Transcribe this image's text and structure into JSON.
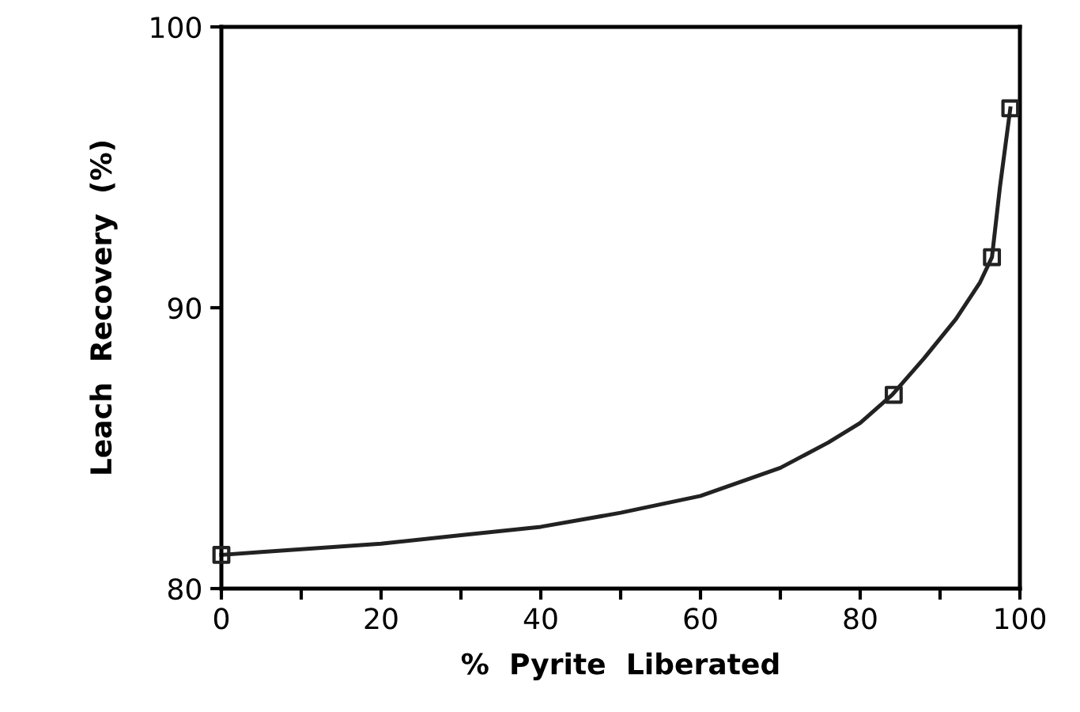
{
  "chart_data": {
    "type": "line",
    "xlabel": "%  Pyrite  Liberated",
    "ylabel": "Leach  Recovery  (%)",
    "xlim": [
      0,
      100
    ],
    "ylim": [
      80,
      100
    ],
    "xticks": [
      0,
      {
        "value": 10,
        "label": null
      },
      20,
      {
        "value": 30,
        "label": null
      },
      40,
      {
        "value": 50,
        "label": null
      },
      60,
      {
        "value": 70,
        "label": null
      },
      80,
      {
        "value": 90,
        "label": null
      },
      100
    ],
    "yticks": [
      80,
      90,
      100
    ],
    "grid": false,
    "legend": false,
    "series": [
      {
        "color": "#222222",
        "marker": "none",
        "line_style": "solid",
        "x": [
          0,
          5,
          10,
          20,
          30,
          40,
          50,
          60,
          70,
          76,
          80,
          84,
          88,
          92,
          95,
          96.5,
          97.5,
          98.8
        ],
        "values": [
          81.2,
          81.3,
          81.4,
          81.6,
          81.9,
          82.2,
          82.7,
          83.3,
          84.3,
          85.2,
          85.9,
          86.9,
          88.2,
          89.6,
          90.9,
          91.8,
          94.3,
          97.1
        ]
      },
      {
        "type": "scatter",
        "color": "#222222",
        "marker": "square",
        "x": [
          0,
          84.2,
          96.5,
          98.8
        ],
        "values": [
          81.2,
          86.9,
          91.8,
          97.1
        ]
      }
    ]
  }
}
